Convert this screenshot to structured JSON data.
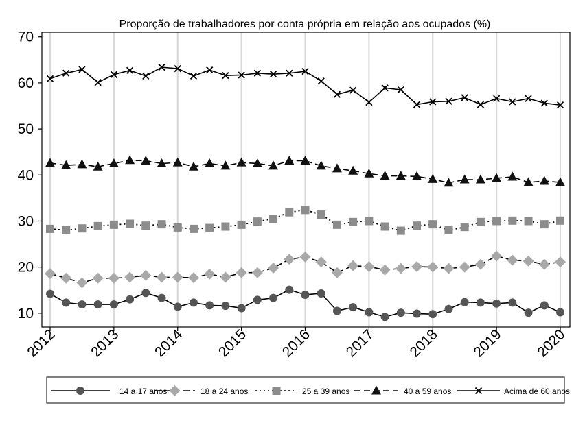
{
  "chart_data": {
    "type": "line",
    "title": "Proporção de trabalhadores por conta própria em relação aos ocupados (%)",
    "xlabel": "",
    "ylabel": "",
    "x_tick_labels": [
      "2012",
      "2013",
      "2014",
      "2015",
      "2016",
      "2017",
      "2018",
      "2019",
      "2020"
    ],
    "y_ticks": [
      10,
      20,
      30,
      40,
      50,
      60,
      70
    ],
    "xlim": [
      2012,
      2020
    ],
    "ylim": [
      7,
      71
    ],
    "grid": "vertical",
    "legend_position": "bottom",
    "x": [
      2012.0,
      2012.25,
      2012.5,
      2012.75,
      2013.0,
      2013.25,
      2013.5,
      2013.75,
      2014.0,
      2014.25,
      2014.5,
      2014.75,
      2015.0,
      2015.25,
      2015.5,
      2015.75,
      2016.0,
      2016.25,
      2016.5,
      2016.75,
      2017.0,
      2017.25,
      2017.5,
      2017.75,
      2018.0,
      2018.25,
      2018.5,
      2018.75,
      2019.0,
      2019.25,
      2019.5,
      2019.75,
      2020.0
    ],
    "series": [
      {
        "name": "14 a 17 anos",
        "marker": "circle",
        "dash": "solid",
        "values": [
          14.2,
          12.3,
          11.9,
          11.9,
          11.9,
          13.0,
          14.4,
          13.3,
          11.4,
          12.3,
          11.7,
          11.6,
          11.1,
          12.9,
          13.3,
          15.1,
          14.0,
          14.3,
          10.5,
          11.3,
          10.2,
          9.2,
          10.1,
          9.9,
          9.8,
          10.9,
          12.4,
          12.3,
          12.1,
          12.3,
          10.1,
          11.7,
          10.2
        ]
      },
      {
        "name": "18 a 24 anos",
        "marker": "diamond",
        "dash": "longdash",
        "values": [
          18.6,
          17.6,
          16.6,
          17.6,
          17.6,
          17.8,
          18.2,
          17.8,
          17.8,
          17.7,
          18.5,
          17.8,
          18.8,
          18.8,
          19.8,
          21.7,
          22.2,
          21.1,
          18.8,
          20.3,
          20.1,
          19.4,
          19.7,
          20.1,
          20.0,
          19.7,
          20.0,
          20.6,
          22.4,
          21.5,
          21.3,
          20.6,
          21.1
        ]
      },
      {
        "name": "25 a 39 anos",
        "marker": "square",
        "dash": "dotted",
        "values": [
          28.3,
          28.0,
          28.4,
          28.9,
          29.2,
          29.4,
          29.0,
          29.3,
          28.6,
          28.3,
          28.5,
          28.8,
          29.2,
          29.9,
          30.5,
          31.9,
          32.4,
          31.4,
          29.2,
          29.8,
          30.0,
          28.8,
          27.9,
          29.0,
          29.3,
          28.0,
          28.7,
          29.8,
          30.0,
          30.1,
          30.0,
          29.3,
          30.1
        ]
      },
      {
        "name": "40 a 59 anos",
        "marker": "triangle",
        "dash": "longdash",
        "values": [
          42.6,
          42.1,
          42.3,
          41.8,
          42.5,
          43.2,
          43.1,
          42.5,
          42.7,
          41.8,
          42.5,
          42.0,
          42.7,
          42.5,
          42.0,
          43.1,
          43.1,
          42.0,
          41.4,
          40.9,
          40.3,
          39.8,
          39.8,
          39.7,
          39.1,
          38.3,
          39.0,
          39.0,
          39.3,
          39.6,
          38.4,
          38.7,
          38.4
        ]
      },
      {
        "name": "Acima de 60 anos",
        "marker": "x",
        "dash": "solid",
        "values": [
          60.9,
          62.1,
          62.9,
          60.1,
          61.8,
          62.7,
          61.5,
          63.4,
          63.1,
          61.5,
          62.8,
          61.6,
          61.7,
          62.1,
          61.9,
          62.1,
          62.5,
          60.4,
          57.5,
          58.4,
          55.8,
          58.9,
          58.5,
          55.3,
          55.9,
          56.0,
          56.8,
          55.3,
          56.6,
          55.9,
          56.6,
          55.6,
          55.2
        ]
      }
    ]
  }
}
